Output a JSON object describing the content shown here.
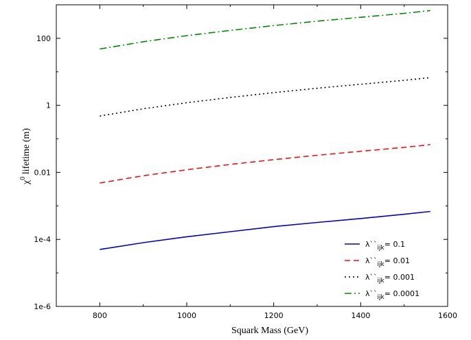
{
  "chart_data": {
    "type": "line",
    "title": "",
    "xlabel": "Squark Mass (GeV)",
    "ylabel_symbol": "χ",
    "ylabel_superscript": "0",
    "ylabel_text": " lifetime (m)",
    "xlim": [
      700,
      1600
    ],
    "ylim": [
      1e-06,
      1000
    ],
    "yscale": "log",
    "xticks": [
      800,
      1000,
      1200,
      1400,
      1600
    ],
    "xtick_labels": [
      "800",
      "1000",
      "1200",
      "1400",
      "1600"
    ],
    "yticks": [
      1e-06,
      0.0001,
      0.01,
      1,
      100
    ],
    "ytick_labels": [
      "1e-6",
      "1e-4",
      "0.01",
      "1",
      "100"
    ],
    "grid": false,
    "legend_position": "bottom-right",
    "x": [
      800,
      900,
      1000,
      1100,
      1200,
      1300,
      1400,
      1500,
      1560
    ],
    "series": [
      {
        "name_prefix": "λ``",
        "name_subscript": "ijk",
        "name_suffix": "= 0.1",
        "color": "#0000cc",
        "dash": "solid",
        "values": [
          5e-05,
          8e-05,
          0.00012,
          0.00017,
          0.00024,
          0.00032,
          0.00042,
          0.00056,
          0.00068
        ]
      },
      {
        "name_prefix": "λ``",
        "name_subscript": "ijk",
        "name_suffix": "= 0.01",
        "color": "#ee1111",
        "dash": "dashed",
        "values": [
          0.0048,
          0.0079,
          0.012,
          0.0172,
          0.024,
          0.0324,
          0.0425,
          0.0556,
          0.0673
        ]
      },
      {
        "name_prefix": "λ``",
        "name_subscript": "ijk",
        "name_suffix": "= 0.001",
        "color": "#000000",
        "dash": "dotted",
        "values": [
          0.48,
          0.79,
          1.2,
          1.72,
          2.4,
          3.24,
          4.25,
          5.56,
          6.73
        ]
      },
      {
        "name_prefix": "λ``",
        "name_subscript": "ijk",
        "name_suffix": "= 0.0001",
        "color": "#008800",
        "dash": "dashdot",
        "values": [
          48,
          79,
          120,
          172,
          240,
          324,
          425,
          556,
          673
        ]
      }
    ]
  }
}
